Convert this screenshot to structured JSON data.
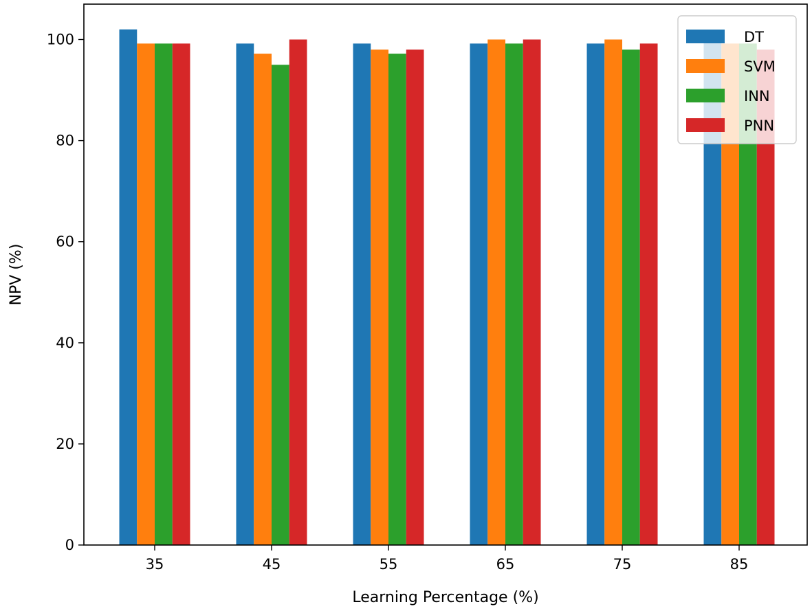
{
  "chart_data": {
    "type": "bar",
    "categories": [
      "35",
      "45",
      "55",
      "65",
      "75",
      "85"
    ],
    "series": [
      {
        "name": "DT",
        "color": "#1f77b4",
        "values": [
          102.0,
          99.2,
          99.2,
          99.2,
          99.2,
          100.0
        ]
      },
      {
        "name": "SVM",
        "color": "#ff7f0e",
        "values": [
          99.2,
          97.2,
          98.0,
          100.0,
          100.0,
          99.2
        ]
      },
      {
        "name": "INN",
        "color": "#2ca02c",
        "values": [
          99.2,
          95.0,
          97.2,
          99.2,
          98.0,
          99.2
        ]
      },
      {
        "name": "PNN",
        "color": "#d62728",
        "values": [
          99.2,
          100.0,
          98.0,
          100.0,
          99.2,
          98.0
        ]
      }
    ],
    "xlabel": "Learning Percentage (%)",
    "ylabel": "NPV (%)",
    "ylim": [
      0,
      107
    ],
    "yticks": [
      "0",
      "20",
      "40",
      "60",
      "80",
      "100"
    ],
    "grid": false,
    "legend": "top-right"
  }
}
